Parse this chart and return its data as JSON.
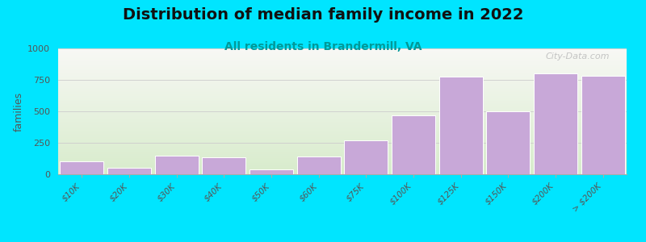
{
  "title": "Distribution of median family income in 2022",
  "subtitle": "All residents in Brandermill, VA",
  "ylabel": "families",
  "categories": [
    "$10K",
    "$20K",
    "$30K",
    "$40K",
    "$50K",
    "$60K",
    "$75K",
    "$100K",
    "$125K",
    "$150K",
    "$200K",
    "> $200K"
  ],
  "values": [
    100,
    50,
    145,
    135,
    40,
    140,
    270,
    470,
    775,
    500,
    800,
    785
  ],
  "bar_color": "#c8a8d8",
  "bar_edge_color": "#ffffff",
  "ylim": [
    0,
    1000
  ],
  "yticks": [
    0,
    250,
    500,
    750,
    1000
  ],
  "background_color": "#00e5ff",
  "plot_bg_top_left": "#dff0d0",
  "plot_bg_top_right": "#f5f5f0",
  "plot_bg_bottom_left": "#dff0d0",
  "plot_bg_bottom_right": "#f5f5f0",
  "title_fontsize": 14,
  "subtitle_fontsize": 10,
  "ylabel_fontsize": 9,
  "watermark": "City-Data.com"
}
